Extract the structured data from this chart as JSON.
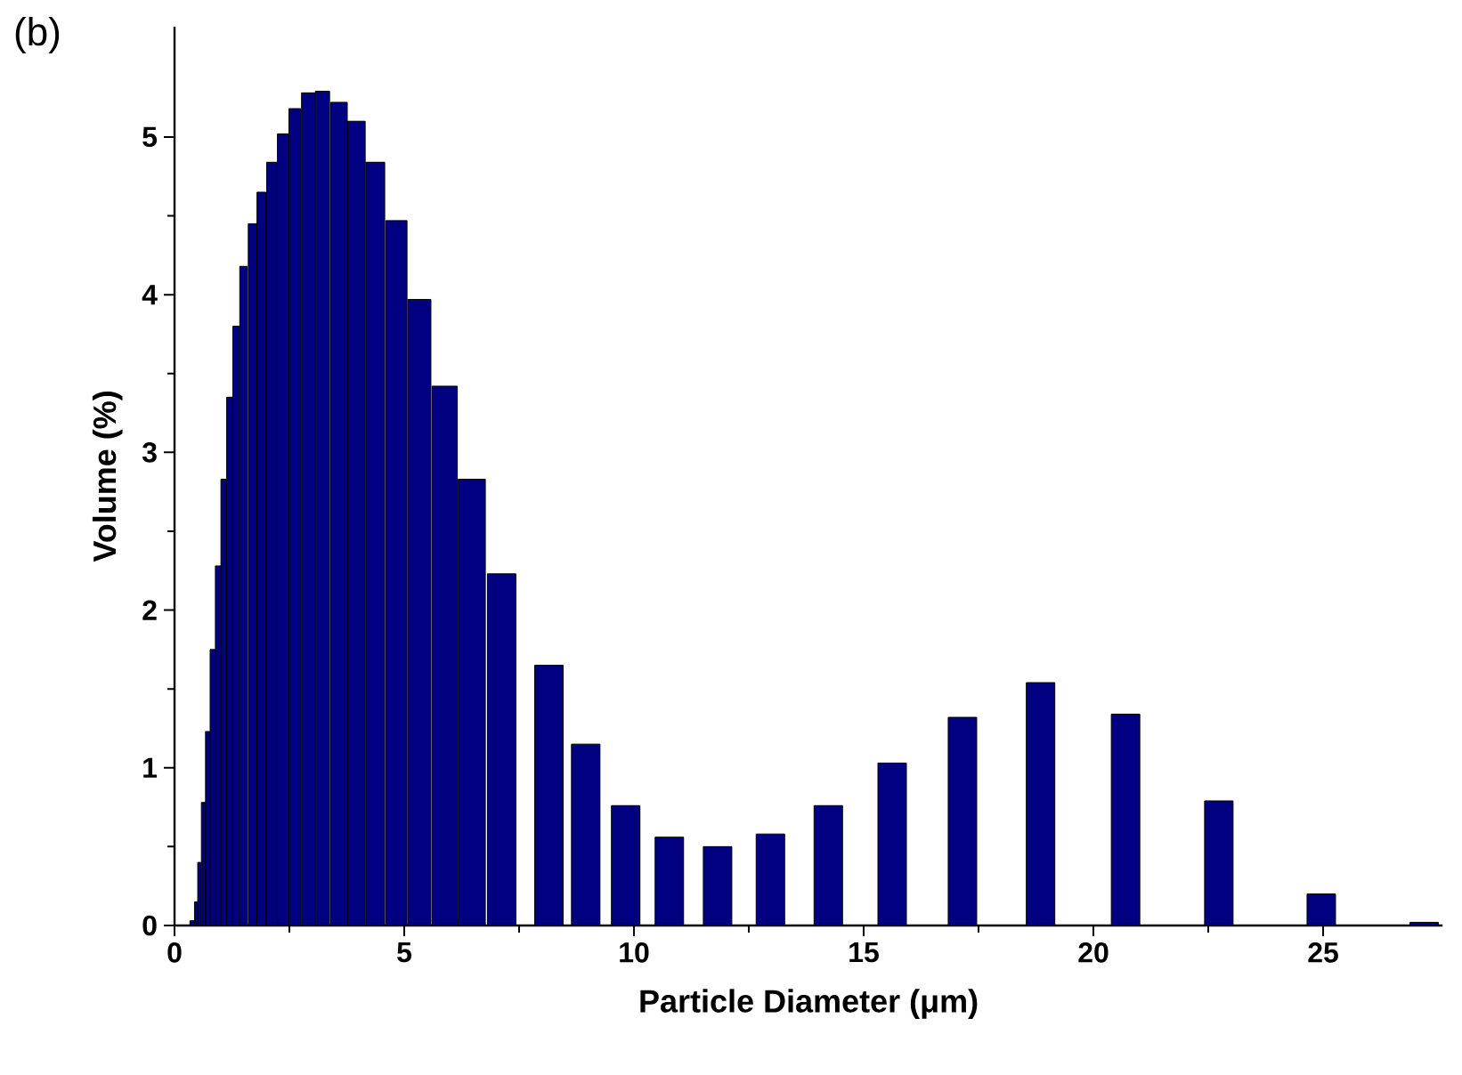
{
  "chart_data": {
    "type": "bar",
    "annotations": [
      "(b)"
    ],
    "xlabel": "Particle Diameter (μm)",
    "ylabel": "Volume (%)",
    "series": [
      {
        "color": "#000080",
        "x": [
          0.38,
          0.47,
          0.54,
          0.63,
          0.72,
          0.83,
          0.95,
          1.07,
          1.2,
          1.34,
          1.5,
          1.7,
          1.89,
          2.12,
          2.36,
          2.62,
          2.91,
          3.22,
          3.58,
          3.96,
          4.37,
          4.83,
          5.33,
          5.88,
          6.47,
          7.12,
          8.15,
          8.95,
          9.82,
          10.77,
          11.82,
          12.97,
          14.23,
          15.62,
          17.15,
          18.85,
          20.7,
          22.73,
          24.96,
          27.2
        ],
        "values": [
          0.03,
          0.15,
          0.4,
          0.78,
          1.23,
          1.75,
          2.28,
          2.83,
          3.35,
          3.8,
          4.18,
          4.45,
          4.65,
          4.84,
          5.02,
          5.18,
          5.28,
          5.29,
          5.22,
          5.1,
          4.84,
          4.47,
          3.97,
          3.42,
          2.83,
          2.23,
          1.65,
          1.15,
          0.76,
          0.56,
          0.5,
          0.58,
          0.76,
          1.03,
          1.32,
          1.54,
          1.34,
          0.79,
          0.2,
          0.02
        ]
      }
    ],
    "xlim": [
      0,
      27.6
    ],
    "ylim": [
      0,
      5.7
    ],
    "xticks": [
      0,
      5,
      10,
      15,
      20,
      25
    ],
    "yticks": [
      0,
      1,
      2,
      3,
      4,
      5
    ]
  }
}
